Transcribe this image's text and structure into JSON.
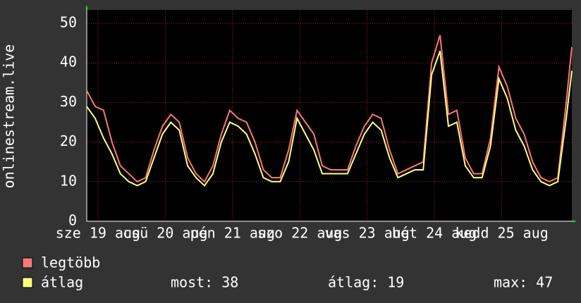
{
  "chart_data": {
    "type": "line",
    "y_label": "onlinestream.live",
    "x": [
      0,
      3,
      6,
      9,
      12,
      15,
      18,
      21,
      24,
      27,
      30,
      33,
      36,
      39,
      42,
      45,
      48,
      51,
      54,
      57,
      60,
      63,
      66,
      69,
      72,
      75,
      78,
      81,
      84,
      87,
      90,
      93,
      96,
      99,
      102,
      105,
      108,
      111,
      114,
      117,
      120,
      123,
      126,
      129,
      132,
      135,
      138,
      141,
      144,
      147,
      150,
      153,
      156,
      159,
      162,
      165,
      168,
      171,
      173
    ],
    "series": [
      {
        "name": "legtöbb",
        "color": "#f87878",
        "values": [
          33,
          29,
          28,
          20,
          14,
          12,
          10,
          11,
          18,
          24,
          27,
          25,
          16,
          12,
          10,
          14,
          22,
          28,
          26,
          25,
          20,
          13,
          11,
          11,
          18,
          28,
          25,
          22,
          14,
          13,
          13,
          13,
          19,
          24,
          27,
          26,
          18,
          12,
          13,
          14,
          15,
          40,
          47,
          27,
          28,
          16,
          12,
          12,
          21,
          39,
          34,
          26,
          22,
          15,
          11,
          10,
          11,
          30,
          44
        ]
      },
      {
        "name": "átlag",
        "color": "#ffff80",
        "values": [
          29,
          26,
          21,
          17,
          12,
          10,
          9,
          10,
          16,
          22,
          25,
          23,
          14,
          11,
          9,
          12,
          20,
          25,
          24,
          22,
          17,
          11,
          10,
          10,
          15,
          26,
          22,
          18,
          12,
          12,
          12,
          12,
          17,
          22,
          25,
          23,
          16,
          11,
          12,
          13,
          13,
          37,
          43,
          24,
          25,
          14,
          11,
          11,
          19,
          36,
          31,
          23,
          19,
          13,
          10,
          9,
          10,
          26,
          38
        ]
      }
    ],
    "xlim": [
      0,
      173
    ],
    "xticks": [
      {
        "value": 4,
        "label": "sze 19 aug"
      },
      {
        "value": 28,
        "label": "csü 20 aug"
      },
      {
        "value": 52,
        "label": "pén 21 aug"
      },
      {
        "value": 76,
        "label": "szo 22 aug"
      },
      {
        "value": 100,
        "label": "vas 23 aug"
      },
      {
        "value": 124,
        "label": "hét 24 aug"
      },
      {
        "value": 148,
        "label": "kedd 25 aug"
      }
    ],
    "ylim": [
      0,
      50
    ],
    "yticks": [
      0,
      10,
      20,
      30,
      40,
      50
    ],
    "grid": true,
    "stats": [
      {
        "label": "most:",
        "value": 38
      },
      {
        "label": "átlag:",
        "value": 19
      },
      {
        "label": "max:",
        "value": 47
      }
    ]
  }
}
